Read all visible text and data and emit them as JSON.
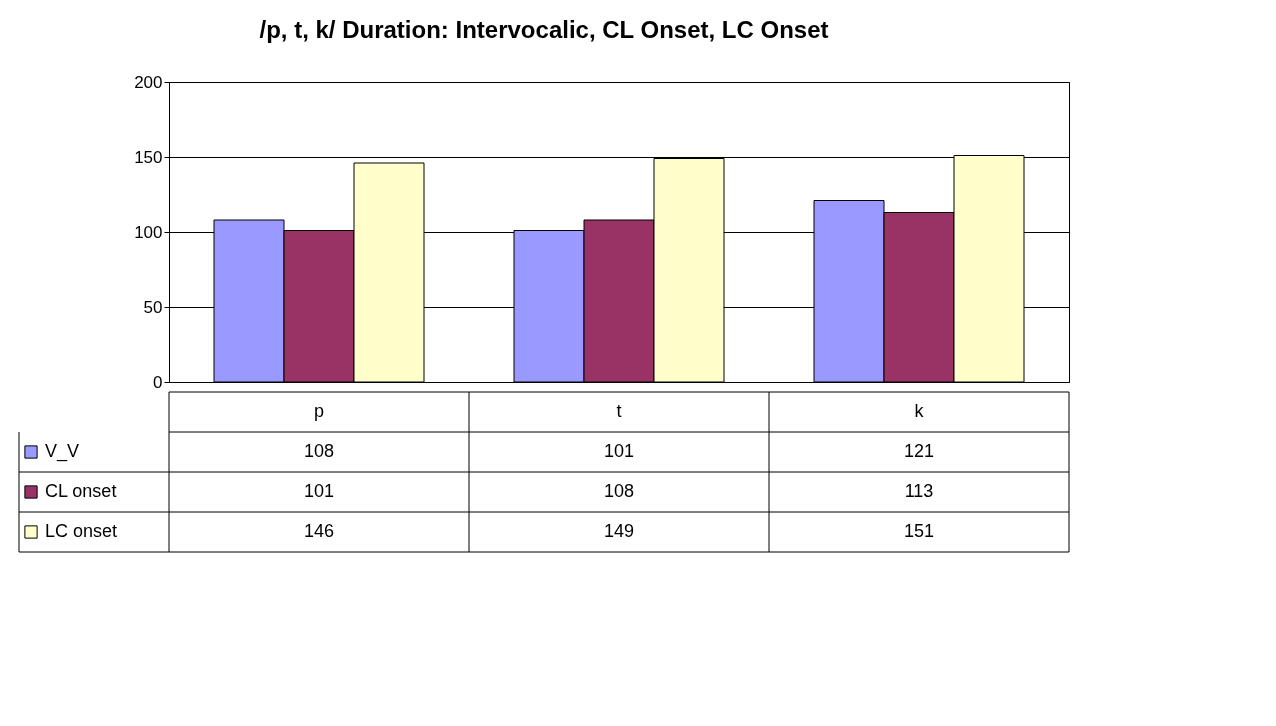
{
  "chart_data": {
    "type": "bar",
    "title": "/p, t, k/ Duration: Intervocalic, CL Onset, LC Onset",
    "categories": [
      "p",
      "t",
      "k"
    ],
    "series": [
      {
        "name": "V_V",
        "color": "#9999ff",
        "values": [
          108,
          101,
          121
        ]
      },
      {
        "name": "CL onset",
        "color": "#993366",
        "values": [
          101,
          108,
          113
        ]
      },
      {
        "name": "LC onset",
        "color": "#ffffcc",
        "values": [
          146,
          149,
          151
        ]
      }
    ],
    "ylim": [
      0,
      200
    ],
    "yticks": [
      0,
      50,
      100,
      150,
      200
    ],
    "grid": "y",
    "data_labels": true,
    "legend": "bottom left"
  }
}
